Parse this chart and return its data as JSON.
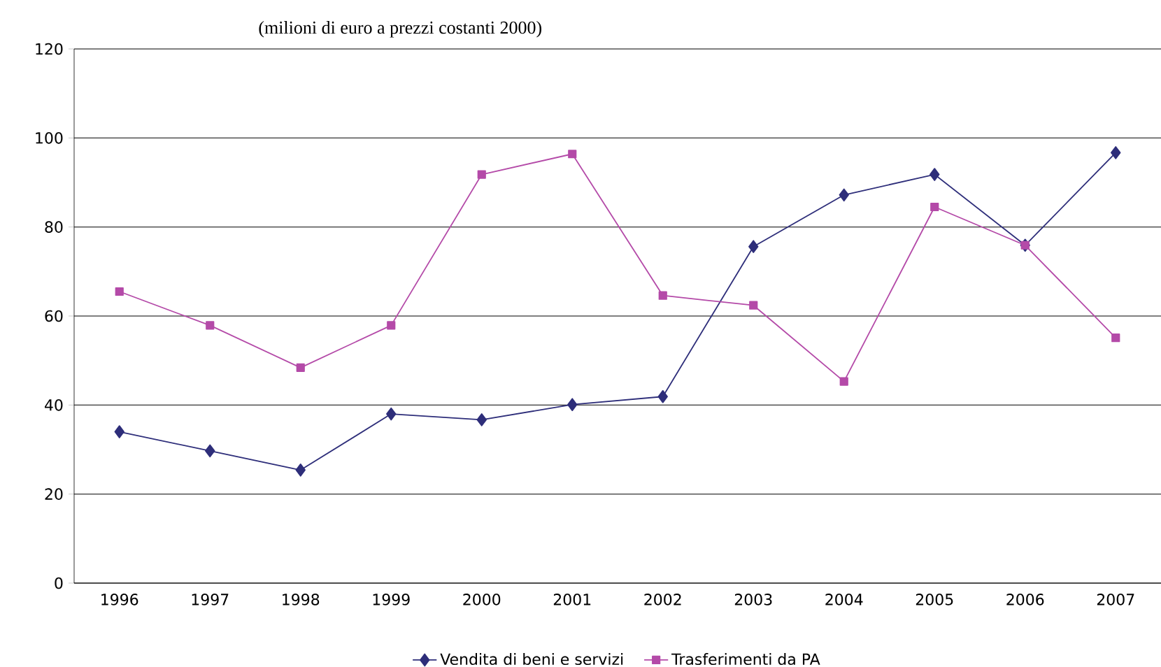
{
  "chart_data": {
    "type": "line",
    "title": "(milioni di euro a prezzi costanti 2000)",
    "categories": [
      "1996",
      "1997",
      "1998",
      "1999",
      "2000",
      "2001",
      "2002",
      "2003",
      "2004",
      "2005",
      "2006",
      "2007"
    ],
    "series": [
      {
        "name": "Vendita di beni e servizi",
        "color": "#2e2e7a",
        "marker": "diamond",
        "values": [
          34,
          29.7,
          25.4,
          38,
          36.7,
          40.1,
          41.9,
          75.6,
          87.2,
          91.8,
          75.9,
          96.7
        ]
      },
      {
        "name": "Trasferimenti da PA",
        "color": "#b44aa8",
        "marker": "square",
        "values": [
          65.5,
          57.9,
          48.4,
          57.9,
          91.8,
          96.4,
          64.6,
          62.4,
          45.3,
          84.5,
          75.9,
          55.1
        ]
      }
    ],
    "ylim": [
      0,
      120
    ],
    "yticks": [
      0,
      20,
      40,
      60,
      80,
      100,
      120
    ],
    "grid": "y",
    "legend": "bottom",
    "line_style": "solid"
  }
}
